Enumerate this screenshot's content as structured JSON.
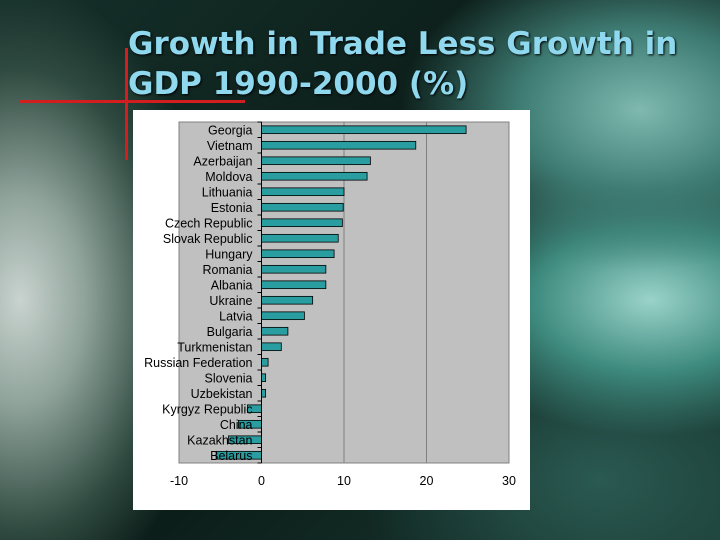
{
  "title": "Growth in Trade Less Growth in GDP 1990-2000 (%)",
  "colors": {
    "bar": "#2a9da0",
    "plot_bg": "#c0c0c0",
    "title": "#8fd8ee",
    "accent": "#d21e1e"
  },
  "chart_data": {
    "type": "bar",
    "orientation": "horizontal",
    "title": "",
    "xlabel": "",
    "ylabel": "",
    "xlim": [
      -10,
      30
    ],
    "xticks": [
      -10,
      0,
      10,
      20,
      30
    ],
    "grid": true,
    "legend": "none",
    "categories": [
      "Georgia",
      "Vietnam",
      "Azerbaijan",
      "Moldova",
      "Lithuania",
      "Estonia",
      "Czech Republic",
      "Slovak Republic",
      "Hungary",
      "Romania",
      "Albania",
      "Ukraine",
      "Latvia",
      "Bulgaria",
      "Turkmenistan",
      "Russian Federation",
      "Slovenia",
      "Uzbekistan",
      "Kyrgyz Republic",
      "China",
      "Kazakhstan",
      "Belarus"
    ],
    "values": [
      24.8,
      18.7,
      13.2,
      12.8,
      10.0,
      9.9,
      9.8,
      9.3,
      8.8,
      7.8,
      7.8,
      6.2,
      5.2,
      3.2,
      2.4,
      0.8,
      0.5,
      0.5,
      -1.7,
      -2.8,
      -4.0,
      -5.5
    ]
  }
}
